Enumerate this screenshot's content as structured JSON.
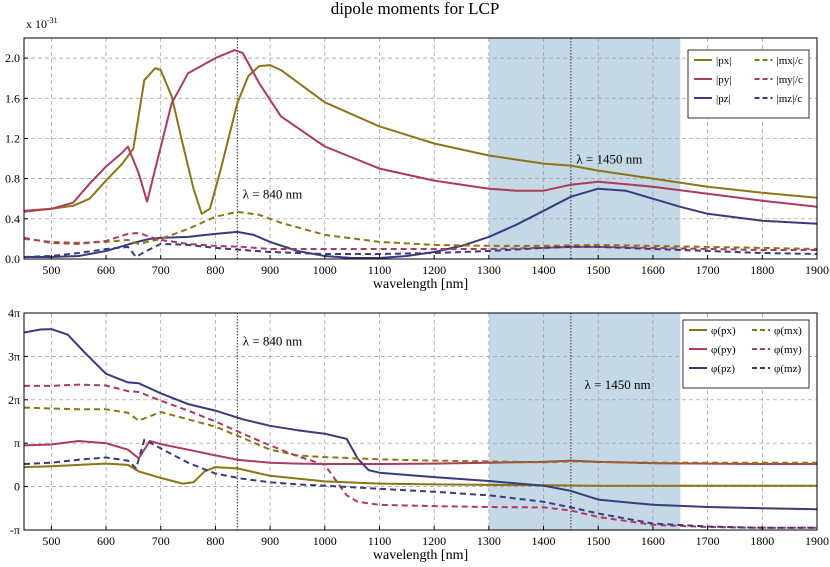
{
  "figure": {
    "title": "dipole moments for LCP",
    "colors": {
      "x": "#8B7514",
      "y": "#B03A5B",
      "z": "#3A3A80"
    },
    "highlight_color": "#BAD1E2"
  },
  "chart_data": [
    {
      "type": "line",
      "title": "dipole moments for LCP",
      "xlabel": "wavelength [nm]",
      "ylabel": "",
      "y_scale_label": "x 10",
      "y_scale_exp": "-31",
      "xlim": [
        450,
        1900
      ],
      "ylim": [
        0,
        2.2
      ],
      "xticks": [
        500,
        600,
        700,
        800,
        900,
        1000,
        1100,
        1200,
        1300,
        1400,
        1500,
        1600,
        1700,
        1800,
        1900
      ],
      "yticks": [
        0,
        0.4,
        0.8,
        1.2,
        1.6,
        2.0
      ],
      "yticklabels": [
        "0.0",
        "0.4",
        "0.8",
        "1.2",
        "1.6",
        "2.0"
      ],
      "grid": true,
      "legend_position": "top-right",
      "shaded_region": [
        1300,
        1650
      ],
      "markers": [
        {
          "x": 840,
          "label": "λ = 840 nm",
          "label_x": 850,
          "label_y": 0.6
        },
        {
          "x": 1450,
          "label": "λ = 1450 nm",
          "label_x": 1460,
          "label_y": 0.95
        }
      ],
      "series": [
        {
          "name": "|px|",
          "sym": "p",
          "sub": "x",
          "comp": "x",
          "dash": false,
          "x": [
            450,
            500,
            540,
            570,
            600,
            630,
            650,
            670,
            690,
            700,
            720,
            740,
            760,
            775,
            790,
            810,
            840,
            860,
            880,
            900,
            920,
            960,
            1000,
            1100,
            1200,
            1300,
            1400,
            1450,
            1500,
            1600,
            1700,
            1800,
            1900
          ],
          "y": [
            0.48,
            0.5,
            0.53,
            0.6,
            0.78,
            0.95,
            1.1,
            1.78,
            1.9,
            1.88,
            1.62,
            1.15,
            0.7,
            0.45,
            0.5,
            0.9,
            1.55,
            1.82,
            1.92,
            1.93,
            1.88,
            1.72,
            1.56,
            1.32,
            1.15,
            1.03,
            0.95,
            0.93,
            0.88,
            0.8,
            0.72,
            0.66,
            0.61
          ]
        },
        {
          "name": "|py|",
          "sym": "p",
          "sub": "y",
          "comp": "y",
          "dash": false,
          "x": [
            450,
            500,
            540,
            570,
            600,
            630,
            640,
            660,
            675,
            690,
            720,
            750,
            800,
            835,
            850,
            880,
            920,
            1000,
            1100,
            1200,
            1300,
            1350,
            1400,
            1450,
            1500,
            1600,
            1700,
            1800,
            1900
          ],
          "y": [
            0.47,
            0.5,
            0.56,
            0.75,
            0.92,
            1.06,
            1.12,
            0.85,
            0.57,
            0.9,
            1.55,
            1.85,
            2.0,
            2.08,
            2.05,
            1.75,
            1.42,
            1.12,
            0.9,
            0.78,
            0.7,
            0.68,
            0.68,
            0.74,
            0.77,
            0.72,
            0.65,
            0.58,
            0.52
          ]
        },
        {
          "name": "|pz|",
          "sym": "p",
          "sub": "z",
          "comp": "z",
          "dash": false,
          "x": [
            450,
            500,
            550,
            600,
            650,
            680,
            700,
            750,
            800,
            840,
            870,
            900,
            950,
            1000,
            1050,
            1100,
            1150,
            1200,
            1250,
            1300,
            1350,
            1400,
            1450,
            1500,
            1550,
            1600,
            1650,
            1700,
            1800,
            1900
          ],
          "y": [
            0.02,
            0.02,
            0.03,
            0.08,
            0.16,
            0.2,
            0.21,
            0.22,
            0.25,
            0.27,
            0.24,
            0.17,
            0.08,
            0.03,
            0.01,
            0.01,
            0.03,
            0.07,
            0.13,
            0.22,
            0.34,
            0.48,
            0.62,
            0.7,
            0.68,
            0.6,
            0.52,
            0.45,
            0.38,
            0.35
          ]
        },
        {
          "name": "|mx|/c",
          "sym": "m",
          "sub": "x",
          "comp": "x",
          "dash": true,
          "x": [
            450,
            500,
            550,
            600,
            640,
            660,
            700,
            750,
            800,
            840,
            880,
            920,
            1000,
            1100,
            1200,
            1300,
            1400,
            1500,
            1600,
            1700,
            1800,
            1900
          ],
          "y": [
            0.2,
            0.17,
            0.16,
            0.17,
            0.19,
            0.15,
            0.2,
            0.3,
            0.42,
            0.47,
            0.44,
            0.36,
            0.24,
            0.17,
            0.14,
            0.13,
            0.13,
            0.14,
            0.13,
            0.12,
            0.11,
            0.1
          ]
        },
        {
          "name": "|my|/c",
          "sym": "m",
          "sub": "y",
          "comp": "y",
          "dash": true,
          "x": [
            450,
            500,
            550,
            600,
            640,
            660,
            680,
            700,
            750,
            800,
            850,
            900,
            1000,
            1100,
            1200,
            1300,
            1400,
            1450,
            1500,
            1600,
            1700,
            1800,
            1900
          ],
          "y": [
            0.21,
            0.16,
            0.15,
            0.18,
            0.25,
            0.26,
            0.22,
            0.19,
            0.15,
            0.13,
            0.12,
            0.1,
            0.1,
            0.1,
            0.1,
            0.1,
            0.11,
            0.12,
            0.12,
            0.11,
            0.1,
            0.09,
            0.09
          ]
        },
        {
          "name": "|mz|/c",
          "sym": "m",
          "sub": "z",
          "comp": "z",
          "dash": true,
          "x": [
            450,
            500,
            550,
            600,
            640,
            655,
            670,
            700,
            750,
            800,
            850,
            900,
            1000,
            1100,
            1200,
            1300,
            1400,
            1450,
            1500,
            1600,
            1700,
            1800,
            1900
          ],
          "y": [
            0.02,
            0.03,
            0.06,
            0.1,
            0.12,
            0.02,
            0.07,
            0.15,
            0.14,
            0.11,
            0.09,
            0.07,
            0.05,
            0.05,
            0.06,
            0.08,
            0.11,
            0.12,
            0.12,
            0.1,
            0.08,
            0.06,
            0.05
          ]
        }
      ]
    },
    {
      "type": "line",
      "xlabel": "wavelength [nm]",
      "ylabel": "",
      "xlim": [
        450,
        1900
      ],
      "ylim": [
        -1,
        4
      ],
      "xticks": [
        500,
        600,
        700,
        800,
        900,
        1000,
        1100,
        1200,
        1300,
        1400,
        1500,
        1600,
        1700,
        1800,
        1900
      ],
      "yticks": [
        -1,
        0,
        1,
        2,
        3,
        4
      ],
      "yticklabels": [
        "-π",
        "0",
        "π",
        "2π",
        "3π",
        "4π"
      ],
      "grid": true,
      "legend_position": "top-right",
      "shaded_region": [
        1300,
        1650
      ],
      "markers": [
        {
          "x": 840,
          "label": "λ = 840 nm",
          "label_x": 850,
          "label_y": 3.25
        },
        {
          "x": 1450,
          "label": "λ = 1450 nm",
          "label_x": 1475,
          "label_y": 2.25
        }
      ],
      "series": [
        {
          "name": "φ(px)",
          "sym": "p",
          "sub": "x",
          "comp": "x",
          "dash": false,
          "x": [
            450,
            500,
            550,
            600,
            640,
            660,
            700,
            740,
            760,
            780,
            800,
            840,
            900,
            1000,
            1100,
            1200,
            1300,
            1400,
            1500,
            1600,
            1700,
            1800,
            1900
          ],
          "y": [
            0.45,
            0.47,
            0.5,
            0.53,
            0.5,
            0.35,
            0.2,
            0.07,
            0.1,
            0.35,
            0.45,
            0.42,
            0.25,
            0.12,
            0.07,
            0.05,
            0.04,
            0.03,
            0.02,
            0.02,
            0.02,
            0.02,
            0.02
          ]
        },
        {
          "name": "φ(py)",
          "sym": "p",
          "sub": "y",
          "comp": "y",
          "dash": false,
          "x": [
            450,
            500,
            550,
            600,
            640,
            660,
            680,
            700,
            750,
            800,
            840,
            900,
            950,
            1000,
            1100,
            1200,
            1300,
            1400,
            1450,
            1500,
            1600,
            1700,
            1800,
            1900
          ],
          "y": [
            0.95,
            0.97,
            1.05,
            1.0,
            0.85,
            0.65,
            1.05,
            0.98,
            0.85,
            0.72,
            0.62,
            0.55,
            0.53,
            0.52,
            0.52,
            0.53,
            0.55,
            0.57,
            0.6,
            0.57,
            0.54,
            0.53,
            0.52,
            0.52
          ]
        },
        {
          "name": "φ(pz)",
          "sym": "p",
          "sub": "z",
          "comp": "z",
          "dash": false,
          "x": [
            450,
            480,
            500,
            530,
            560,
            600,
            640,
            660,
            700,
            750,
            800,
            850,
            900,
            950,
            1000,
            1040,
            1060,
            1080,
            1100,
            1200,
            1300,
            1400,
            1450,
            1500,
            1600,
            1700,
            1800,
            1900
          ],
          "y": [
            3.55,
            3.62,
            3.63,
            3.5,
            3.1,
            2.6,
            2.4,
            2.38,
            2.15,
            1.9,
            1.75,
            1.55,
            1.4,
            1.3,
            1.22,
            1.1,
            0.65,
            0.38,
            0.32,
            0.22,
            0.13,
            0.02,
            -0.1,
            -0.3,
            -0.42,
            -0.47,
            -0.5,
            -0.52
          ]
        },
        {
          "name": "φ(mx)",
          "sym": "m",
          "sub": "x",
          "comp": "x",
          "dash": true,
          "x": [
            450,
            500,
            550,
            600,
            640,
            660,
            700,
            750,
            800,
            850,
            900,
            950,
            1000,
            1100,
            1200,
            1300,
            1400,
            1450,
            1500,
            1600,
            1700,
            1800,
            1900
          ],
          "y": [
            1.82,
            1.8,
            1.78,
            1.78,
            1.7,
            1.52,
            1.72,
            1.55,
            1.38,
            1.12,
            0.85,
            0.72,
            0.68,
            0.63,
            0.6,
            0.58,
            0.56,
            0.58,
            0.57,
            0.55,
            0.55,
            0.55,
            0.55
          ]
        },
        {
          "name": "φ(my)",
          "sym": "m",
          "sub": "y",
          "comp": "y",
          "dash": true,
          "x": [
            450,
            500,
            550,
            600,
            640,
            660,
            700,
            750,
            800,
            850,
            900,
            950,
            1000,
            1020,
            1040,
            1060,
            1100,
            1200,
            1300,
            1400,
            1450,
            1500,
            1600,
            1700,
            1800,
            1900
          ],
          "y": [
            2.32,
            2.32,
            2.35,
            2.33,
            2.2,
            2.18,
            1.98,
            1.75,
            1.5,
            1.22,
            0.95,
            0.7,
            0.5,
            0.15,
            -0.2,
            -0.35,
            -0.42,
            -0.45,
            -0.47,
            -0.48,
            -0.55,
            -0.7,
            -0.88,
            -0.93,
            -0.95,
            -0.95
          ]
        },
        {
          "name": "φ(mz)",
          "sym": "m",
          "sub": "z",
          "comp": "z",
          "dash": true,
          "x": [
            450,
            500,
            550,
            600,
            640,
            655,
            670,
            700,
            750,
            800,
            850,
            900,
            950,
            1000,
            1100,
            1200,
            1300,
            1400,
            1450,
            1500,
            1600,
            1700,
            1800,
            1900
          ],
          "y": [
            0.52,
            0.55,
            0.62,
            0.67,
            0.6,
            0.42,
            1.08,
            0.88,
            0.55,
            0.3,
            0.18,
            0.1,
            0.05,
            0.02,
            -0.05,
            -0.12,
            -0.2,
            -0.35,
            -0.48,
            -0.62,
            -0.85,
            -0.92,
            -0.95,
            -0.95
          ]
        }
      ]
    }
  ]
}
